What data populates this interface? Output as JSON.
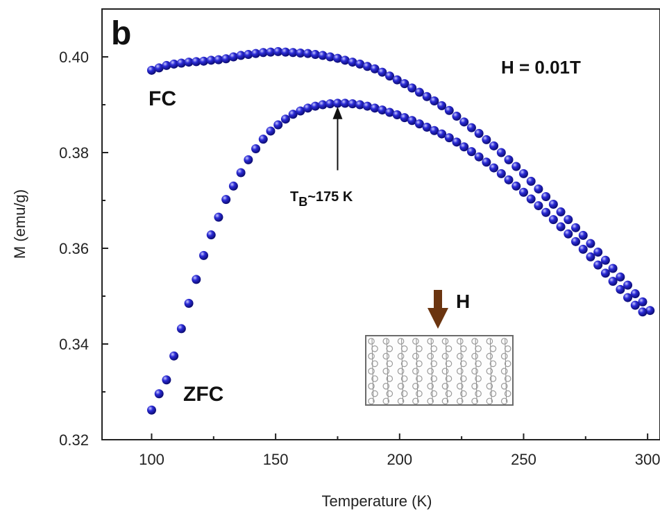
{
  "chart_data": {
    "type": "scatter",
    "panel_label": "b",
    "xlabel": "Temperature (K)",
    "ylabel": "M (emu/g)",
    "xlim": [
      80,
      305
    ],
    "ylim": [
      0.32,
      0.41
    ],
    "xticks": [
      100,
      150,
      200,
      250,
      300
    ],
    "yticks": [
      0.32,
      0.34,
      0.36,
      0.38,
      0.4
    ],
    "ytick_labels": [
      "0.32",
      "0.34",
      "0.36",
      "0.38",
      "0.40"
    ],
    "marker_color": "#2b2bd6",
    "series": [
      {
        "name": "FC",
        "x": [
          100,
          103,
          106,
          109,
          112,
          115,
          118,
          121,
          124,
          127,
          130,
          133,
          136,
          139,
          142,
          145,
          148,
          151,
          154,
          157,
          160,
          163,
          166,
          169,
          172,
          175,
          178,
          181,
          184,
          187,
          190,
          193,
          196,
          199,
          202,
          205,
          208,
          211,
          214,
          217,
          220,
          223,
          226,
          229,
          232,
          235,
          238,
          241,
          244,
          247,
          250,
          253,
          256,
          259,
          262,
          265,
          268,
          271,
          274,
          277,
          280,
          283,
          286,
          289,
          292,
          295,
          298,
          301
        ],
        "y": [
          0.3972,
          0.3977,
          0.3982,
          0.3985,
          0.3987,
          0.3989,
          0.399,
          0.3991,
          0.3993,
          0.3994,
          0.3996,
          0.4,
          0.4003,
          0.4005,
          0.4007,
          0.4009,
          0.401,
          0.4011,
          0.401,
          0.4009,
          0.4008,
          0.4007,
          0.4005,
          0.4003,
          0.4,
          0.3997,
          0.3993,
          0.3989,
          0.3985,
          0.398,
          0.3975,
          0.3968,
          0.396,
          0.3952,
          0.3944,
          0.3935,
          0.3926,
          0.3917,
          0.3908,
          0.3898,
          0.3888,
          0.3876,
          0.3864,
          0.3852,
          0.384,
          0.3827,
          0.3814,
          0.38,
          0.3785,
          0.3771,
          0.3756,
          0.374,
          0.3724,
          0.3708,
          0.3692,
          0.3676,
          0.366,
          0.3643,
          0.3627,
          0.361,
          0.3592,
          0.3575,
          0.3558,
          0.354,
          0.3523,
          0.3505,
          0.3488,
          0.347
        ]
      },
      {
        "name": "ZFC",
        "x": [
          100,
          103,
          106,
          109,
          112,
          115,
          118,
          121,
          124,
          127,
          130,
          133,
          136,
          139,
          142,
          145,
          148,
          151,
          154,
          157,
          160,
          163,
          166,
          169,
          172,
          175,
          178,
          181,
          184,
          187,
          190,
          193,
          196,
          199,
          202,
          205,
          208,
          211,
          214,
          217,
          220,
          223,
          226,
          229,
          232,
          235,
          238,
          241,
          244,
          247,
          250,
          253,
          256,
          259,
          262,
          265,
          268,
          271,
          274,
          277,
          280,
          283,
          286,
          289,
          292,
          295,
          298
        ],
        "y": [
          0.3262,
          0.3296,
          0.3325,
          0.3375,
          0.3432,
          0.3485,
          0.3535,
          0.3585,
          0.3628,
          0.3665,
          0.3702,
          0.373,
          0.3758,
          0.3785,
          0.3808,
          0.3828,
          0.3845,
          0.3858,
          0.387,
          0.388,
          0.3887,
          0.3893,
          0.3897,
          0.39,
          0.3902,
          0.3903,
          0.3903,
          0.3902,
          0.39,
          0.3897,
          0.3893,
          0.3889,
          0.3884,
          0.3879,
          0.3873,
          0.3867,
          0.386,
          0.3853,
          0.3846,
          0.3839,
          0.3831,
          0.3822,
          0.3812,
          0.3802,
          0.3791,
          0.378,
          0.3768,
          0.3756,
          0.3743,
          0.373,
          0.3717,
          0.3703,
          0.3689,
          0.3675,
          0.366,
          0.3645,
          0.363,
          0.3614,
          0.3598,
          0.3582,
          0.3565,
          0.3548,
          0.3531,
          0.3514,
          0.3497,
          0.3481,
          0.3467
        ]
      }
    ],
    "annotations": {
      "field": "H = 0.01T",
      "fc": "FC",
      "zfc": "ZFC",
      "tb_main": "T",
      "tb_sub": "B",
      "tb_rest": "~175 K",
      "tb_arrow_x": 175,
      "tb_arrow_y_tip": 0.3896,
      "tb_arrow_y_tail": 0.3763,
      "inset_field_label": "H"
    },
    "inset_colors": {
      "arrow": "#6b3510",
      "grid": "#8a8a8a",
      "circle": "#9a9a9a"
    }
  }
}
